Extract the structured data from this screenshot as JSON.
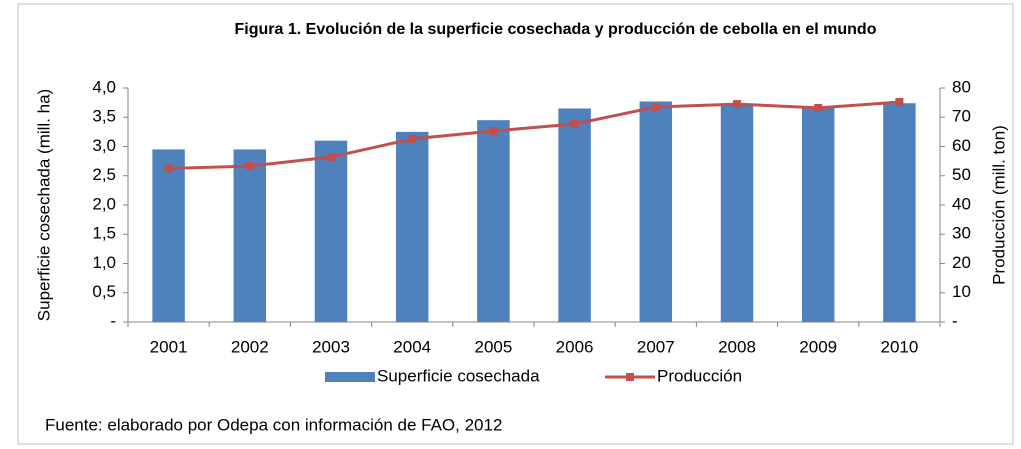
{
  "chart_data": {
    "type": "combo",
    "title": "Figura 1. Evolución  de la superficie cosechada y producción  de cebolla en el mundo",
    "ylabel": "Superficie cosechada  (mill. ha)",
    "y2label": "Producción (mill.  ton)",
    "source": "Fuente: elaborado por Odepa con información de FAO,  2012",
    "categories": [
      "2001",
      "2002",
      "2003",
      "2004",
      "2005",
      "2006",
      "2007",
      "2008",
      "2009",
      "2010"
    ],
    "series": [
      {
        "name": "Superficie cosechada",
        "type": "bar",
        "color": "#4f81bd",
        "values": [
          2.95,
          2.95,
          3.1,
          3.25,
          3.45,
          3.65,
          3.77,
          3.73,
          3.66,
          3.74
        ]
      },
      {
        "name": "Producción",
        "type": "line",
        "axis": "y2",
        "color": "#c0504d",
        "values": [
          52.5,
          53.3,
          56.4,
          62.6,
          65.3,
          67.7,
          73.5,
          74.5,
          73.2,
          75.2
        ]
      }
    ],
    "ylim": [
      0,
      4
    ],
    "yticks": [
      {
        "value": 0,
        "label": "-"
      },
      {
        "value": 0.5,
        "label": "0,5"
      },
      {
        "value": 1,
        "label": "1,0"
      },
      {
        "value": 1.5,
        "label": "1,5"
      },
      {
        "value": 2,
        "label": "2,0"
      },
      {
        "value": 2.5,
        "label": "2,5"
      },
      {
        "value": 3,
        "label": "3,0"
      },
      {
        "value": 3.5,
        "label": "3,5"
      },
      {
        "value": 4,
        "label": "4,0"
      }
    ],
    "y2lim": [
      0,
      80
    ],
    "y2ticks": [
      {
        "value": 0,
        "label": "-"
      },
      10,
      20,
      30,
      40,
      50,
      60,
      70,
      80
    ],
    "grid": false,
    "legend": "bottom"
  }
}
